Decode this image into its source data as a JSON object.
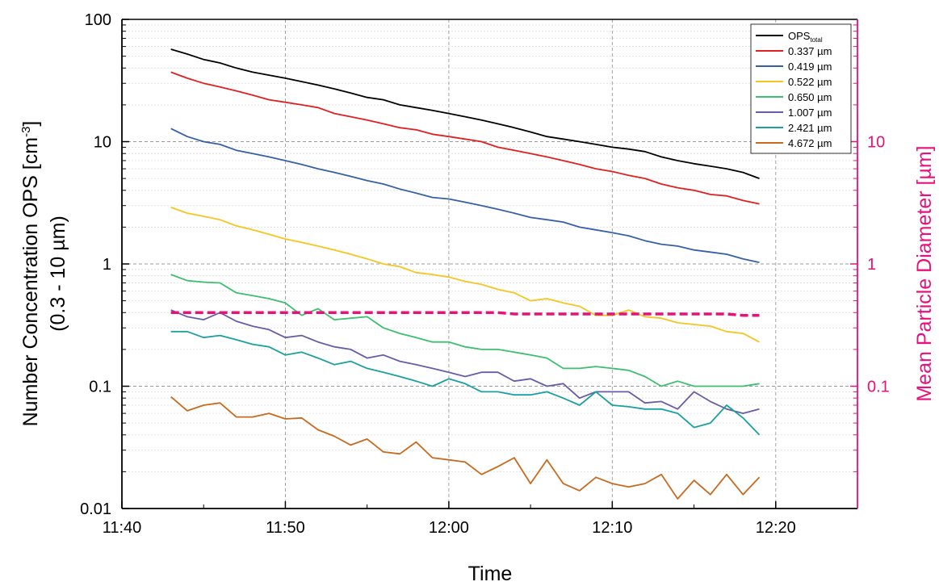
{
  "chart_data": {
    "type": "line",
    "xlabel": "Time",
    "ylabel_line1": "Number Concentration OPS [cm",
    "ylabel_sup": "-3",
    "ylabel_end": "]",
    "ylabel_line2": "(0.3 - 10 µm)",
    "y2label": "Mean Particle Diameter [µm]",
    "x_scale": "linear",
    "y_scale": "log",
    "y2_scale": "log",
    "xlim": [
      "11:40",
      "12:25"
    ],
    "ylim": [
      0.01,
      100
    ],
    "y2lim": [
      0.01,
      100
    ],
    "grid": true,
    "legend_position": "top-right",
    "x_ticks": [
      "11:40",
      "11:50",
      "12:00",
      "12:10",
      "12:20"
    ],
    "y_ticks": [
      "0.01",
      "0.1",
      "1",
      "10",
      "100"
    ],
    "y2_ticks": [
      "0.1",
      "1",
      "10"
    ],
    "x": [
      "11:43",
      "11:44",
      "11:45",
      "11:46",
      "11:47",
      "11:48",
      "11:49",
      "11:50",
      "11:51",
      "11:52",
      "11:53",
      "11:54",
      "11:55",
      "11:56",
      "11:57",
      "11:58",
      "11:59",
      "12:00",
      "12:01",
      "12:02",
      "12:03",
      "12:04",
      "12:05",
      "12:06",
      "12:07",
      "12:08",
      "12:09",
      "12:10",
      "12:11",
      "12:12",
      "12:13",
      "12:14",
      "12:15",
      "12:16",
      "12:17",
      "12:18",
      "12:19"
    ],
    "series": [
      {
        "name": "OPS",
        "name_sub": "total",
        "color": "#000000",
        "values": [
          57,
          52,
          47,
          44,
          40,
          37,
          35,
          33,
          31,
          29,
          27,
          25,
          23,
          22,
          20,
          19,
          18,
          17,
          16,
          15,
          14,
          13,
          12,
          11,
          10.5,
          10,
          9.5,
          9.0,
          8.7,
          8.3,
          7.5,
          7.0,
          6.6,
          6.3,
          6.0,
          5.6,
          5.0
        ]
      },
      {
        "name": "0.337 µm",
        "color": "#e02020",
        "values": [
          37,
          33,
          30,
          28,
          26,
          24,
          22,
          21,
          20,
          19,
          17,
          16,
          15,
          14,
          13,
          12.5,
          11.5,
          11,
          10.5,
          10,
          9.0,
          8.5,
          8.0,
          7.5,
          7.0,
          6.5,
          6.0,
          5.7,
          5.3,
          5.0,
          4.5,
          4.2,
          4.0,
          3.7,
          3.6,
          3.3,
          3.1
        ]
      },
      {
        "name": "0.419 µm",
        "color": "#3560a8",
        "values": [
          12.8,
          11,
          10,
          9.5,
          8.5,
          8,
          7.5,
          7,
          6.5,
          6,
          5.6,
          5.2,
          4.8,
          4.5,
          4.1,
          3.8,
          3.5,
          3.4,
          3.2,
          3.0,
          2.8,
          2.6,
          2.4,
          2.3,
          2.2,
          2.0,
          1.9,
          1.8,
          1.7,
          1.55,
          1.45,
          1.4,
          1.3,
          1.25,
          1.2,
          1.1,
          1.03
        ]
      },
      {
        "name": "0.522 µm",
        "color": "#f5c520",
        "values": [
          2.9,
          2.6,
          2.45,
          2.3,
          2.05,
          1.9,
          1.75,
          1.6,
          1.5,
          1.4,
          1.3,
          1.2,
          1.1,
          1.0,
          0.95,
          0.85,
          0.82,
          0.78,
          0.72,
          0.68,
          0.62,
          0.58,
          0.5,
          0.52,
          0.48,
          0.45,
          0.38,
          0.38,
          0.42,
          0.37,
          0.36,
          0.33,
          0.32,
          0.31,
          0.28,
          0.27,
          0.23
        ]
      },
      {
        "name": "0.650 µm",
        "color": "#3cbf6e",
        "values": [
          0.82,
          0.73,
          0.71,
          0.7,
          0.58,
          0.55,
          0.52,
          0.48,
          0.38,
          0.43,
          0.35,
          0.36,
          0.37,
          0.3,
          0.27,
          0.25,
          0.23,
          0.23,
          0.21,
          0.2,
          0.2,
          0.19,
          0.18,
          0.17,
          0.14,
          0.14,
          0.145,
          0.14,
          0.135,
          0.12,
          0.1,
          0.11,
          0.1,
          0.1,
          0.1,
          0.1,
          0.105
        ]
      },
      {
        "name": "1.007 µm",
        "color": "#6a5ba8",
        "values": [
          0.42,
          0.37,
          0.35,
          0.4,
          0.34,
          0.31,
          0.29,
          0.25,
          0.26,
          0.23,
          0.21,
          0.2,
          0.17,
          0.18,
          0.16,
          0.15,
          0.14,
          0.13,
          0.12,
          0.13,
          0.13,
          0.11,
          0.115,
          0.1,
          0.105,
          0.08,
          0.09,
          0.09,
          0.09,
          0.073,
          0.075,
          0.065,
          0.09,
          0.075,
          0.065,
          0.06,
          0.065
        ]
      },
      {
        "name": "2.421 µm",
        "color": "#1aa0a0",
        "values": [
          0.28,
          0.28,
          0.25,
          0.26,
          0.24,
          0.22,
          0.21,
          0.18,
          0.19,
          0.17,
          0.15,
          0.16,
          0.14,
          0.13,
          0.12,
          0.11,
          0.1,
          0.115,
          0.105,
          0.09,
          0.09,
          0.085,
          0.085,
          0.09,
          0.08,
          0.07,
          0.09,
          0.07,
          0.068,
          0.065,
          0.065,
          0.06,
          0.046,
          0.05,
          0.07,
          0.055,
          0.04
        ]
      },
      {
        "name": "4.672 µm",
        "color": "#c86a1e",
        "values": [
          0.082,
          0.063,
          0.07,
          0.073,
          0.056,
          0.056,
          0.06,
          0.054,
          0.055,
          0.044,
          0.039,
          0.033,
          0.037,
          0.029,
          0.028,
          0.035,
          0.026,
          0.025,
          0.024,
          0.019,
          0.022,
          0.026,
          0.016,
          0.025,
          0.016,
          0.014,
          0.018,
          0.016,
          0.015,
          0.016,
          0.019,
          0.012,
          0.017,
          0.013,
          0.019,
          0.013,
          0.018
        ]
      }
    ],
    "mean_diameter": {
      "axis": "y2",
      "color": "#e8107a",
      "style": "dashed",
      "values": [
        0.4,
        0.4,
        0.4,
        0.4,
        0.4,
        0.4,
        0.4,
        0.4,
        0.4,
        0.4,
        0.4,
        0.4,
        0.4,
        0.4,
        0.4,
        0.4,
        0.4,
        0.4,
        0.4,
        0.4,
        0.4,
        0.39,
        0.39,
        0.39,
        0.39,
        0.39,
        0.39,
        0.39,
        0.39,
        0.39,
        0.39,
        0.39,
        0.39,
        0.39,
        0.39,
        0.38,
        0.38
      ]
    }
  }
}
